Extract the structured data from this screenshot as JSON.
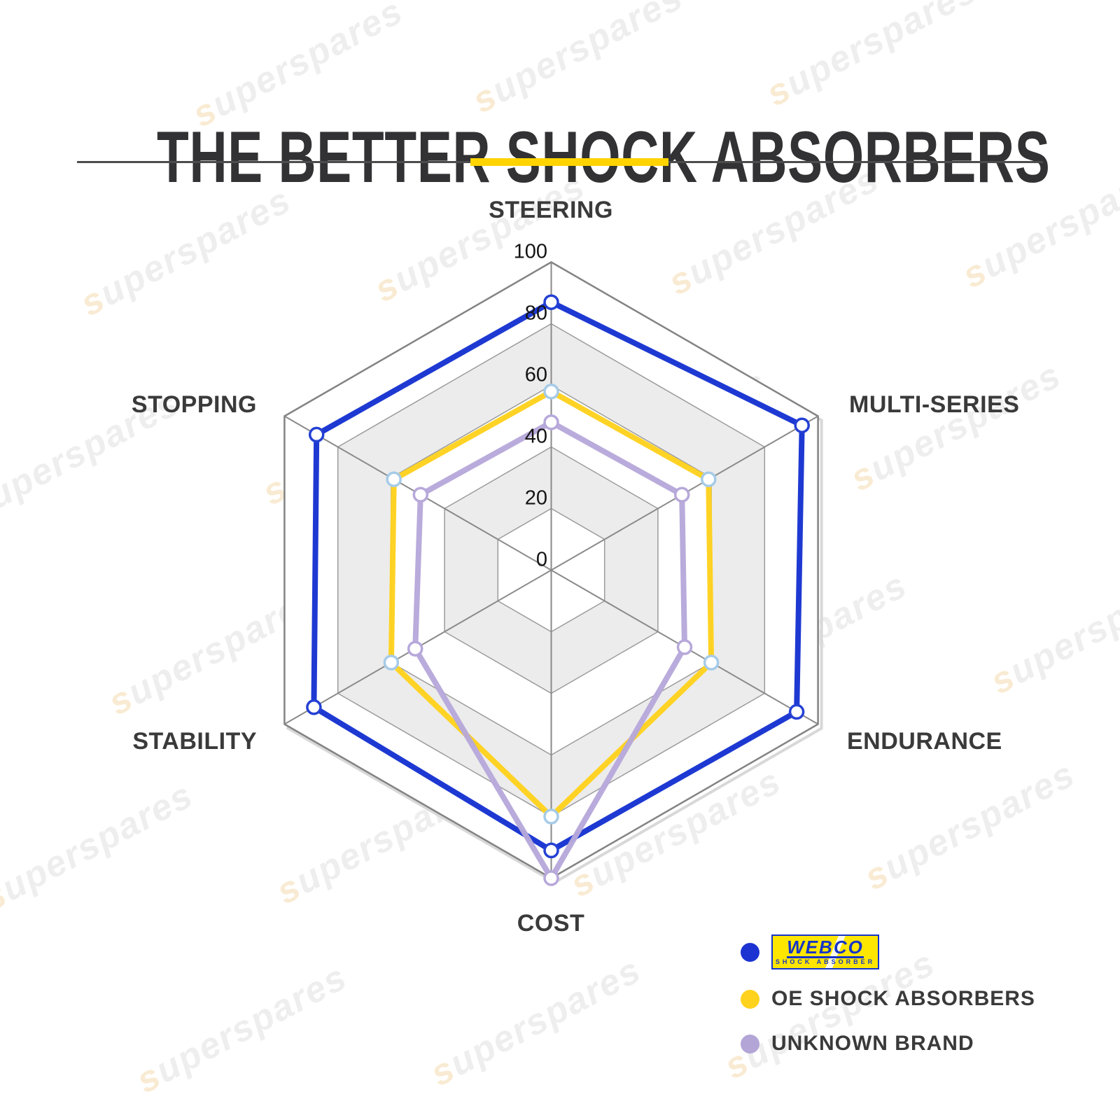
{
  "watermark": {
    "first": "s",
    "rest": "uperspares"
  },
  "header": {
    "title": "THE BETTER SHOCK ABSORBERS",
    "accent_color": "#ffd400"
  },
  "chart_data": {
    "type": "radar",
    "title": "",
    "axes": [
      "STEERING",
      "MULTI-SERIES",
      "ENDURANCE",
      "COST",
      "STABILITY",
      "STOPPING"
    ],
    "max": 100,
    "tick_values": [
      0,
      20,
      40,
      60,
      80,
      100
    ],
    "grid": {
      "band_colors": [
        "#ffffff",
        "#ececec"
      ],
      "ring_line_color": "#9b9b9b",
      "outer_line_color": "#838383",
      "spoke_color": "#8a8a8a",
      "shadow_color": "#d8d8d8"
    },
    "series": [
      {
        "name": "WEBCO SHOCK ABSORBER",
        "color": "#1733d1",
        "marker_stroke": "#2440d4",
        "values": [
          87,
          94,
          92,
          91,
          89,
          88
        ]
      },
      {
        "name": "OE SHOCK ABSORBERS",
        "color": "#ffd21e",
        "marker_stroke": "#a6cbe8",
        "values": [
          58,
          59,
          60,
          80,
          60,
          59
        ]
      },
      {
        "name": "UNKNOWN BRAND",
        "color": "#b7a8da",
        "marker_stroke": "#b7a8da",
        "values": [
          48,
          49,
          50,
          100,
          51,
          49
        ]
      }
    ],
    "legend_position": "bottom-right"
  },
  "legend": {
    "items": [
      {
        "dot_color": "#1c33d2",
        "label": ""
      },
      {
        "dot_color": "#ffd21e",
        "label": "OE SHOCK ABSORBERS"
      },
      {
        "dot_color": "#b3a5d6",
        "label": "UNKNOWN BRAND"
      }
    ],
    "logo": {
      "line1": "WEBCO",
      "line2": "SHOCK ABSORBER"
    }
  }
}
